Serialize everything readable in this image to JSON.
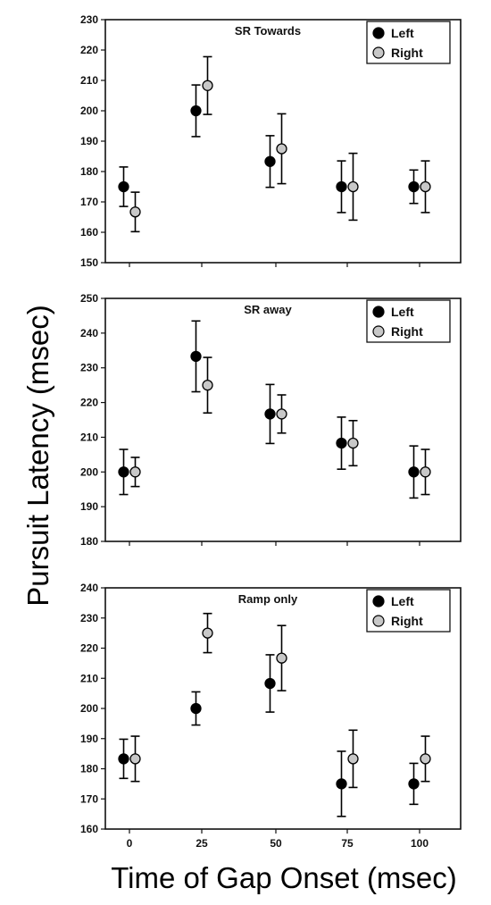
{
  "figure": {
    "ylabel": "Pursuit Latency (msec)",
    "xlabel": "Time of Gap Onset (msec)",
    "x_tick_labels": [
      "0",
      "25",
      "50",
      "75",
      "100"
    ]
  },
  "colors": {
    "left": "#000000",
    "right": "#c8c8c8",
    "frame": "#111111"
  },
  "chart_data": [
    {
      "type": "scatter",
      "title": "SR Towards",
      "xlabel": "Time of Gap Onset (msec)",
      "ylabel": "Pursuit Latency (msec)",
      "x": [
        0,
        25,
        50,
        75,
        100
      ],
      "ylim": [
        150,
        230
      ],
      "yticks": [
        150,
        160,
        170,
        180,
        190,
        200,
        210,
        220,
        230
      ],
      "legend_position": "top-right",
      "series": [
        {
          "name": "Left",
          "values": [
            175,
            200,
            183.3,
            175,
            175
          ],
          "errors": [
            6.5,
            8.5,
            8.5,
            8.5,
            5.5
          ]
        },
        {
          "name": "Right",
          "values": [
            166.7,
            208.3,
            187.5,
            175,
            175
          ],
          "errors": [
            6.5,
            9.5,
            11.5,
            11,
            8.5
          ]
        }
      ]
    },
    {
      "type": "scatter",
      "title": "SR away",
      "xlabel": "Time of Gap Onset (msec)",
      "ylabel": "Pursuit Latency (msec)",
      "x": [
        0,
        25,
        50,
        75,
        100
      ],
      "ylim": [
        180,
        250
      ],
      "yticks": [
        180,
        190,
        200,
        210,
        220,
        230,
        240,
        250
      ],
      "legend_position": "top-right",
      "series": [
        {
          "name": "Left",
          "values": [
            200,
            233.3,
            216.7,
            208.3,
            200
          ],
          "errors": [
            6.5,
            10.2,
            8.5,
            7.5,
            7.5
          ]
        },
        {
          "name": "Right",
          "values": [
            200,
            225,
            216.7,
            208.3,
            200
          ],
          "errors": [
            4.2,
            8,
            5.5,
            6.5,
            6.5
          ]
        }
      ]
    },
    {
      "type": "scatter",
      "title": "Ramp only",
      "xlabel": "Time of Gap Onset (msec)",
      "ylabel": "Pursuit Latency (msec)",
      "x": [
        0,
        25,
        50,
        75,
        100
      ],
      "ylim": [
        160,
        240
      ],
      "yticks": [
        160,
        170,
        180,
        190,
        200,
        210,
        220,
        230,
        240
      ],
      "legend_position": "top-right",
      "series": [
        {
          "name": "Left",
          "values": [
            183.3,
            200,
            208.3,
            175,
            175
          ],
          "errors": [
            6.5,
            5.5,
            9.5,
            10.8,
            6.8
          ]
        },
        {
          "name": "Right",
          "values": [
            183.3,
            225,
            216.7,
            183.3,
            183.3
          ],
          "errors": [
            7.5,
            6.5,
            10.8,
            9.5,
            7.5
          ]
        }
      ]
    }
  ]
}
